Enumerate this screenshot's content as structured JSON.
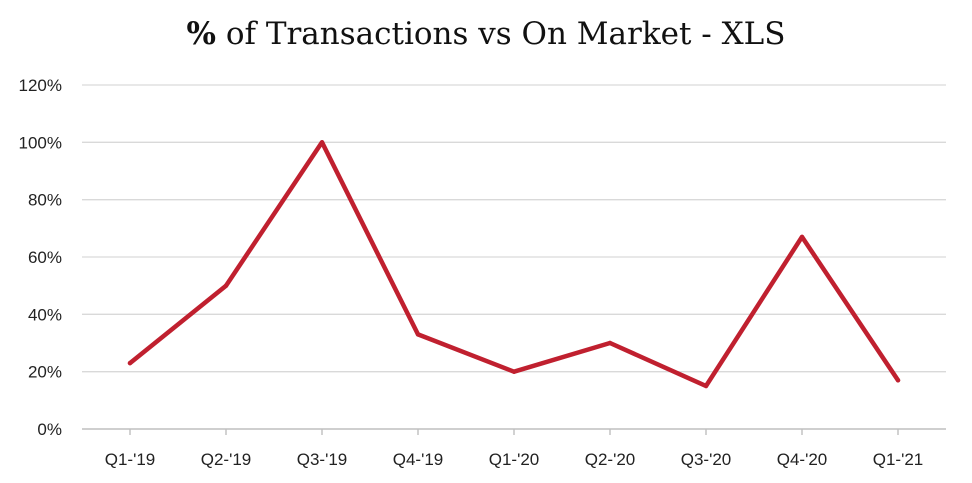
{
  "title": {
    "bold_part": "%",
    "rest": " of Transactions vs On Market - XLS"
  },
  "colors": {
    "line": "#C0202F",
    "grid": "#D9D9D9",
    "axis": "#BFBFBF"
  },
  "chart_data": {
    "type": "line",
    "title": "% of Transactions vs On Market - XLS",
    "xlabel": "",
    "ylabel": "",
    "categories": [
      "Q1-'19",
      "Q2-'19",
      "Q3-'19",
      "Q4-'19",
      "Q1-'20",
      "Q2-'20",
      "Q3-'20",
      "Q4-'20",
      "Q1-'21"
    ],
    "series": [
      {
        "values": [
          23,
          50,
          100,
          33,
          20,
          30,
          15,
          67,
          17
        ]
      }
    ],
    "ylim": [
      0,
      120
    ],
    "yticks": [
      0,
      20,
      40,
      60,
      80,
      100,
      120
    ],
    "ytick_labels": [
      "0%",
      "20%",
      "40%",
      "60%",
      "80%",
      "100%",
      "120%"
    ],
    "grid": true,
    "legend": "none"
  }
}
